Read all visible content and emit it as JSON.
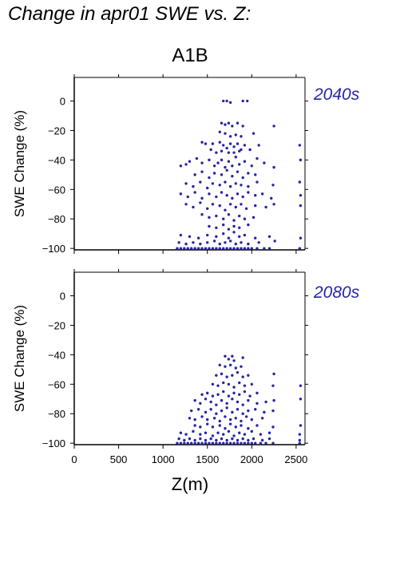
{
  "heading": "Change in apr01 SWE vs. Z:",
  "scenario": "A1B",
  "colors": {
    "points": "#2525a8",
    "period_label": "#2525a8",
    "axes": "#000000"
  },
  "chart_data": [
    {
      "type": "scatter",
      "panel_label": "2040s",
      "ylabel": "SWE Change (%)",
      "xlabel": "",
      "xlim": [
        0,
        2600
      ],
      "ylim": [
        -101,
        16
      ],
      "yticks": [
        0,
        -20,
        -40,
        -60,
        -80,
        -100
      ],
      "xticks": [
        0,
        500,
        1000,
        1500,
        2000,
        2500
      ],
      "xtick_labels_shown": false,
      "points": [
        [
          1680,
          0
        ],
        [
          1720,
          0
        ],
        [
          1760,
          -1
        ],
        [
          1900,
          0
        ],
        [
          1950,
          0
        ],
        [
          1660,
          -15
        ],
        [
          1700,
          -16
        ],
        [
          1740,
          -15
        ],
        [
          1780,
          -17
        ],
        [
          1840,
          -15
        ],
        [
          1900,
          -17
        ],
        [
          2250,
          -17
        ],
        [
          1640,
          -21
        ],
        [
          1700,
          -22
        ],
        [
          1760,
          -24
        ],
        [
          1820,
          -23
        ],
        [
          1880,
          -24
        ],
        [
          2020,
          -22
        ],
        [
          1440,
          -28
        ],
        [
          1480,
          -29
        ],
        [
          1560,
          -29
        ],
        [
          1640,
          -28
        ],
        [
          1680,
          -30
        ],
        [
          1720,
          -32
        ],
        [
          1760,
          -29
        ],
        [
          1800,
          -31
        ],
        [
          1840,
          -29
        ],
        [
          1880,
          -33
        ],
        [
          1920,
          -30
        ],
        [
          1980,
          -33
        ],
        [
          2080,
          -30
        ],
        [
          2540,
          -30
        ],
        [
          1540,
          -33
        ],
        [
          1600,
          -35
        ],
        [
          1660,
          -34
        ],
        [
          1740,
          -35
        ],
        [
          1800,
          -35
        ],
        [
          1860,
          -34
        ],
        [
          1200,
          -44
        ],
        [
          1260,
          -43
        ],
        [
          1300,
          -41
        ],
        [
          1380,
          -39
        ],
        [
          1440,
          -42
        ],
        [
          1520,
          -40
        ],
        [
          1580,
          -44
        ],
        [
          1620,
          -42
        ],
        [
          1660,
          -40
        ],
        [
          1700,
          -45
        ],
        [
          1740,
          -41
        ],
        [
          1780,
          -44
        ],
        [
          1820,
          -38
        ],
        [
          1860,
          -43
        ],
        [
          1920,
          -41
        ],
        [
          2000,
          -44
        ],
        [
          2060,
          -39
        ],
        [
          2140,
          -42
        ],
        [
          2250,
          -45
        ],
        [
          2550,
          -40
        ],
        [
          1360,
          -50
        ],
        [
          1440,
          -48
        ],
        [
          1520,
          -52
        ],
        [
          1580,
          -49
        ],
        [
          1660,
          -50
        ],
        [
          1720,
          -47
        ],
        [
          1780,
          -51
        ],
        [
          1840,
          -48
        ],
        [
          1900,
          -52
        ],
        [
          1960,
          -49
        ],
        [
          2040,
          -50
        ],
        [
          1260,
          -56
        ],
        [
          1340,
          -58
        ],
        [
          1420,
          -55
        ],
        [
          1500,
          -59
        ],
        [
          1560,
          -56
        ],
        [
          1640,
          -57
        ],
        [
          1700,
          -55
        ],
        [
          1760,
          -58
        ],
        [
          1820,
          -56
        ],
        [
          1880,
          -57
        ],
        [
          1960,
          -58
        ],
        [
          2060,
          -55
        ],
        [
          2240,
          -57
        ],
        [
          2540,
          -55
        ],
        [
          1200,
          -63
        ],
        [
          1280,
          -65
        ],
        [
          1360,
          -62
        ],
        [
          1440,
          -66
        ],
        [
          1520,
          -63
        ],
        [
          1600,
          -65
        ],
        [
          1660,
          -62
        ],
        [
          1720,
          -64
        ],
        [
          1780,
          -66
        ],
        [
          1840,
          -63
        ],
        [
          1900,
          -65
        ],
        [
          1960,
          -62
        ],
        [
          2040,
          -64
        ],
        [
          2120,
          -63
        ],
        [
          2220,
          -66
        ],
        [
          2550,
          -64
        ],
        [
          1260,
          -70
        ],
        [
          1340,
          -72
        ],
        [
          1420,
          -69
        ],
        [
          1500,
          -73
        ],
        [
          1560,
          -70
        ],
        [
          1640,
          -71
        ],
        [
          1700,
          -74
        ],
        [
          1760,
          -70
        ],
        [
          1820,
          -72
        ],
        [
          1880,
          -70
        ],
        [
          1940,
          -73
        ],
        [
          2040,
          -71
        ],
        [
          2160,
          -72
        ],
        [
          2250,
          -70
        ],
        [
          2550,
          -71
        ],
        [
          1440,
          -77
        ],
        [
          1520,
          -79
        ],
        [
          1600,
          -78
        ],
        [
          1680,
          -80
        ],
        [
          1740,
          -77
        ],
        [
          1800,
          -81
        ],
        [
          1860,
          -78
        ],
        [
          1920,
          -80
        ],
        [
          2020,
          -79
        ],
        [
          1520,
          -85
        ],
        [
          1600,
          -86
        ],
        [
          1680,
          -84
        ],
        [
          1740,
          -87
        ],
        [
          1800,
          -85
        ],
        [
          1860,
          -86
        ],
        [
          1960,
          -84
        ],
        [
          1200,
          -91
        ],
        [
          1300,
          -92
        ],
        [
          1400,
          -93
        ],
        [
          1500,
          -91
        ],
        [
          1600,
          -92
        ],
        [
          1680,
          -90
        ],
        [
          1740,
          -93
        ],
        [
          1800,
          -89
        ],
        [
          1860,
          -92
        ],
        [
          1920,
          -91
        ],
        [
          2040,
          -93
        ],
        [
          2200,
          -92
        ],
        [
          2550,
          -93
        ],
        [
          1180,
          -96
        ],
        [
          1260,
          -97
        ],
        [
          1340,
          -96
        ],
        [
          1420,
          -97
        ],
        [
          1500,
          -96
        ],
        [
          1580,
          -95
        ],
        [
          1640,
          -97
        ],
        [
          1700,
          -96
        ],
        [
          1760,
          -95
        ],
        [
          1820,
          -97
        ],
        [
          1880,
          -96
        ],
        [
          1960,
          -97
        ],
        [
          2080,
          -96
        ],
        [
          2260,
          -95
        ],
        [
          1160,
          -100
        ],
        [
          1200,
          -100
        ],
        [
          1240,
          -100
        ],
        [
          1280,
          -100
        ],
        [
          1320,
          -100
        ],
        [
          1360,
          -100
        ],
        [
          1400,
          -100
        ],
        [
          1440,
          -100
        ],
        [
          1480,
          -100
        ],
        [
          1520,
          -100
        ],
        [
          1560,
          -100
        ],
        [
          1600,
          -100
        ],
        [
          1640,
          -100
        ],
        [
          1680,
          -100
        ],
        [
          1720,
          -100
        ],
        [
          1760,
          -100
        ],
        [
          1800,
          -100
        ],
        [
          1840,
          -100
        ],
        [
          1880,
          -100
        ],
        [
          1920,
          -100
        ],
        [
          1960,
          -100
        ],
        [
          2000,
          -100
        ],
        [
          2060,
          -100
        ],
        [
          2140,
          -100
        ],
        [
          2200,
          -100
        ],
        [
          2540,
          -100
        ]
      ]
    },
    {
      "type": "scatter",
      "panel_label": "2080s",
      "ylabel": "SWE Change (%)",
      "xlabel": "Z(m)",
      "xlim": [
        0,
        2600
      ],
      "ylim": [
        -101,
        16
      ],
      "yticks": [
        0,
        -20,
        -40,
        -60,
        -80,
        -100
      ],
      "xticks": [
        0,
        500,
        1000,
        1500,
        2000,
        2500
      ],
      "xtick_labels_shown": true,
      "points": [
        [
          1700,
          -41
        ],
        [
          1740,
          -43
        ],
        [
          1780,
          -41
        ],
        [
          1800,
          -44
        ],
        [
          1900,
          -42
        ],
        [
          1640,
          -47
        ],
        [
          1700,
          -48
        ],
        [
          1760,
          -47
        ],
        [
          1820,
          -49
        ],
        [
          1880,
          -48
        ],
        [
          1600,
          -54
        ],
        [
          1660,
          -53
        ],
        [
          1720,
          -55
        ],
        [
          1780,
          -54
        ],
        [
          1840,
          -52
        ],
        [
          1900,
          -55
        ],
        [
          1960,
          -54
        ],
        [
          2250,
          -53
        ],
        [
          1560,
          -60
        ],
        [
          1620,
          -61
        ],
        [
          1680,
          -59
        ],
        [
          1740,
          -60
        ],
        [
          1800,
          -62
        ],
        [
          1860,
          -59
        ],
        [
          1920,
          -61
        ],
        [
          2000,
          -60
        ],
        [
          2240,
          -61
        ],
        [
          2550,
          -61
        ],
        [
          1440,
          -67
        ],
        [
          1500,
          -66
        ],
        [
          1560,
          -68
        ],
        [
          1620,
          -67
        ],
        [
          1680,
          -65
        ],
        [
          1740,
          -68
        ],
        [
          1800,
          -66
        ],
        [
          1860,
          -67
        ],
        [
          1920,
          -65
        ],
        [
          1980,
          -68
        ],
        [
          2060,
          -66
        ],
        [
          1360,
          -71
        ],
        [
          1420,
          -73
        ],
        [
          1480,
          -70
        ],
        [
          1540,
          -72
        ],
        [
          1600,
          -74
        ],
        [
          1660,
          -71
        ],
        [
          1720,
          -73
        ],
        [
          1780,
          -70
        ],
        [
          1840,
          -72
        ],
        [
          1900,
          -74
        ],
        [
          1960,
          -71
        ],
        [
          2060,
          -73
        ],
        [
          2160,
          -72
        ],
        [
          2250,
          -71
        ],
        [
          2550,
          -70
        ],
        [
          1320,
          -78
        ],
        [
          1400,
          -77
        ],
        [
          1480,
          -79
        ],
        [
          1540,
          -77
        ],
        [
          1600,
          -80
        ],
        [
          1660,
          -78
        ],
        [
          1720,
          -76
        ],
        [
          1780,
          -79
        ],
        [
          1840,
          -77
        ],
        [
          1900,
          -80
        ],
        [
          1960,
          -78
        ],
        [
          2040,
          -77
        ],
        [
          2140,
          -79
        ],
        [
          2240,
          -78
        ],
        [
          1300,
          -83
        ],
        [
          1360,
          -84
        ],
        [
          1440,
          -82
        ],
        [
          1500,
          -84
        ],
        [
          1580,
          -83
        ],
        [
          1640,
          -85
        ],
        [
          1700,
          -82
        ],
        [
          1760,
          -84
        ],
        [
          1820,
          -83
        ],
        [
          1880,
          -85
        ],
        [
          1940,
          -82
        ],
        [
          2000,
          -84
        ],
        [
          2120,
          -83
        ],
        [
          1360,
          -88
        ],
        [
          1420,
          -89
        ],
        [
          1500,
          -87
        ],
        [
          1560,
          -89
        ],
        [
          1640,
          -88
        ],
        [
          1700,
          -90
        ],
        [
          1760,
          -87
        ],
        [
          1820,
          -89
        ],
        [
          1880,
          -88
        ],
        [
          1960,
          -90
        ],
        [
          2060,
          -88
        ],
        [
          2240,
          -89
        ],
        [
          2550,
          -88
        ],
        [
          1200,
          -93
        ],
        [
          1260,
          -94
        ],
        [
          1340,
          -92
        ],
        [
          1420,
          -94
        ],
        [
          1480,
          -93
        ],
        [
          1560,
          -95
        ],
        [
          1620,
          -93
        ],
        [
          1680,
          -94
        ],
        [
          1740,
          -92
        ],
        [
          1800,
          -95
        ],
        [
          1860,
          -93
        ],
        [
          1920,
          -94
        ],
        [
          2000,
          -92
        ],
        [
          2100,
          -94
        ],
        [
          2200,
          -93
        ],
        [
          2540,
          -94
        ],
        [
          1180,
          -97
        ],
        [
          1240,
          -98
        ],
        [
          1300,
          -97
        ],
        [
          1360,
          -98
        ],
        [
          1420,
          -97
        ],
        [
          1480,
          -98
        ],
        [
          1540,
          -97
        ],
        [
          1600,
          -98
        ],
        [
          1660,
          -97
        ],
        [
          1720,
          -98
        ],
        [
          1780,
          -97
        ],
        [
          1840,
          -98
        ],
        [
          1900,
          -97
        ],
        [
          1960,
          -98
        ],
        [
          2020,
          -97
        ],
        [
          2120,
          -98
        ],
        [
          2200,
          -97
        ],
        [
          2540,
          -98
        ],
        [
          1160,
          -100
        ],
        [
          1200,
          -100
        ],
        [
          1240,
          -100
        ],
        [
          1280,
          -100
        ],
        [
          1320,
          -100
        ],
        [
          1360,
          -100
        ],
        [
          1400,
          -100
        ],
        [
          1440,
          -100
        ],
        [
          1480,
          -100
        ],
        [
          1520,
          -100
        ],
        [
          1560,
          -100
        ],
        [
          1600,
          -100
        ],
        [
          1640,
          -100
        ],
        [
          1680,
          -100
        ],
        [
          1720,
          -100
        ],
        [
          1760,
          -100
        ],
        [
          1800,
          -100
        ],
        [
          1840,
          -100
        ],
        [
          1880,
          -100
        ],
        [
          1920,
          -100
        ],
        [
          1960,
          -100
        ],
        [
          2000,
          -100
        ],
        [
          2040,
          -100
        ],
        [
          2100,
          -100
        ],
        [
          2160,
          -100
        ],
        [
          2240,
          -100
        ],
        [
          2540,
          -100
        ]
      ]
    }
  ]
}
